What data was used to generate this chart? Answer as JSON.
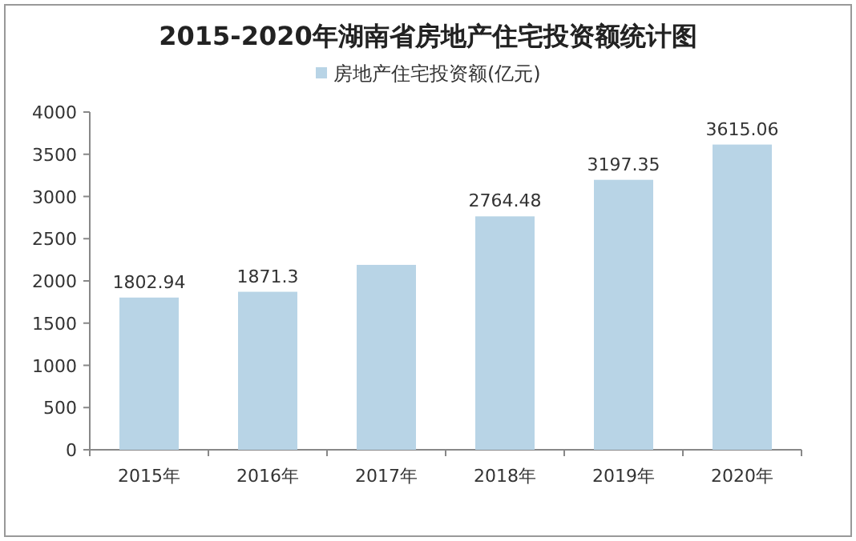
{
  "chart_data": {
    "type": "bar",
    "title": "2015-2020年湖南省房地产住宅投资额统计图",
    "categories": [
      "2015年",
      "2016年",
      "2017年",
      "2018年",
      "2019年",
      "2020年"
    ],
    "series": [
      {
        "name": "房地产住宅投资额(亿元)",
        "color": "#b8d4e6",
        "values": [
          1802.94,
          1871.3,
          2190,
          2764.48,
          3197.35,
          3615.06
        ],
        "value_labels": [
          "1802.94",
          "1871.3",
          null,
          "2764.48",
          "3197.35",
          "3615.06"
        ]
      }
    ],
    "ylim": [
      0,
      4000
    ],
    "yticks": [
      0,
      500,
      1000,
      1500,
      2000,
      2500,
      3000,
      3500,
      4000
    ],
    "grid": false,
    "legend": "top"
  }
}
